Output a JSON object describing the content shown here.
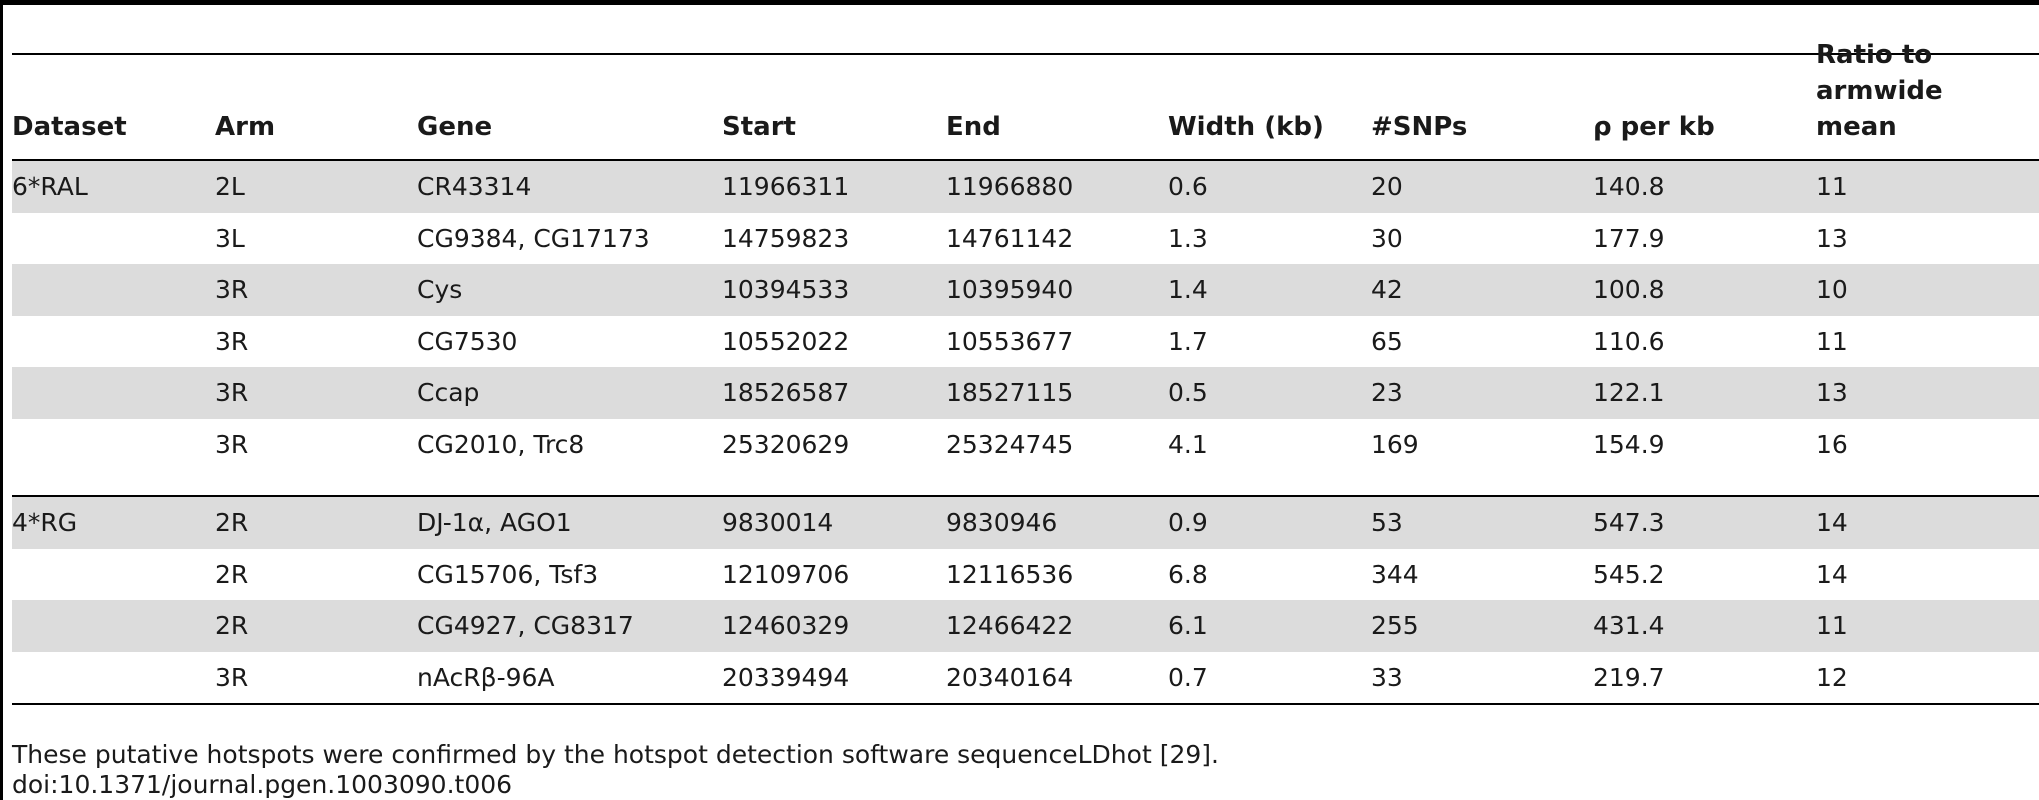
{
  "table": {
    "headers": [
      {
        "text": "Dataset"
      },
      {
        "text": "Arm"
      },
      {
        "text": "Gene"
      },
      {
        "text": "Start"
      },
      {
        "text": "End"
      },
      {
        "text": "Width (kb)"
      },
      {
        "text": "#SNPs"
      },
      {
        "text": "ρ per kb"
      },
      {
        "text": "Ratio to armwide mean"
      }
    ],
    "groups": [
      {
        "dataset": "6*RAL",
        "rows": [
          [
            "2L",
            "CR43314",
            "11966311",
            "11966880",
            "0.6",
            "20",
            "140.8",
            "11"
          ],
          [
            "3L",
            "CG9384, CG17173",
            "14759823",
            "14761142",
            "1.3",
            "30",
            "177.9",
            "13"
          ],
          [
            "3R",
            "Cys",
            "10394533",
            "10395940",
            "1.4",
            "42",
            "100.8",
            "10"
          ],
          [
            "3R",
            "CG7530",
            "10552022",
            "10553677",
            "1.7",
            "65",
            "110.6",
            "11"
          ],
          [
            "3R",
            "Ccap",
            "18526587",
            "18527115",
            "0.5",
            "23",
            "122.1",
            "13"
          ],
          [
            "3R",
            "CG2010, Trc8",
            "25320629",
            "25324745",
            "4.1",
            "169",
            "154.9",
            "16"
          ]
        ]
      },
      {
        "dataset": "4*RG",
        "rows": [
          [
            "2R",
            "DJ-1α, AGO1",
            "9830014",
            "9830946",
            "0.9",
            "53",
            "547.3",
            "14"
          ],
          [
            "2R",
            "CG15706, Tsf3",
            "12109706",
            "12116536",
            "6.8",
            "344",
            "545.2",
            "14"
          ],
          [
            "2R",
            "CG4927, CG8317",
            "12460329",
            "12466422",
            "6.1",
            "255",
            "431.4",
            "11"
          ],
          [
            "3R",
            "nAcRβ-96A",
            "20339494",
            "20340164",
            "0.7",
            "33",
            "219.7",
            "12"
          ]
        ]
      }
    ]
  },
  "footnote": {
    "note": "These putative hotspots were confirmed by the hotspot detection software sequenceLDhot [29].",
    "doi": "doi:10.1371/journal.pgen.1003090.t006"
  }
}
